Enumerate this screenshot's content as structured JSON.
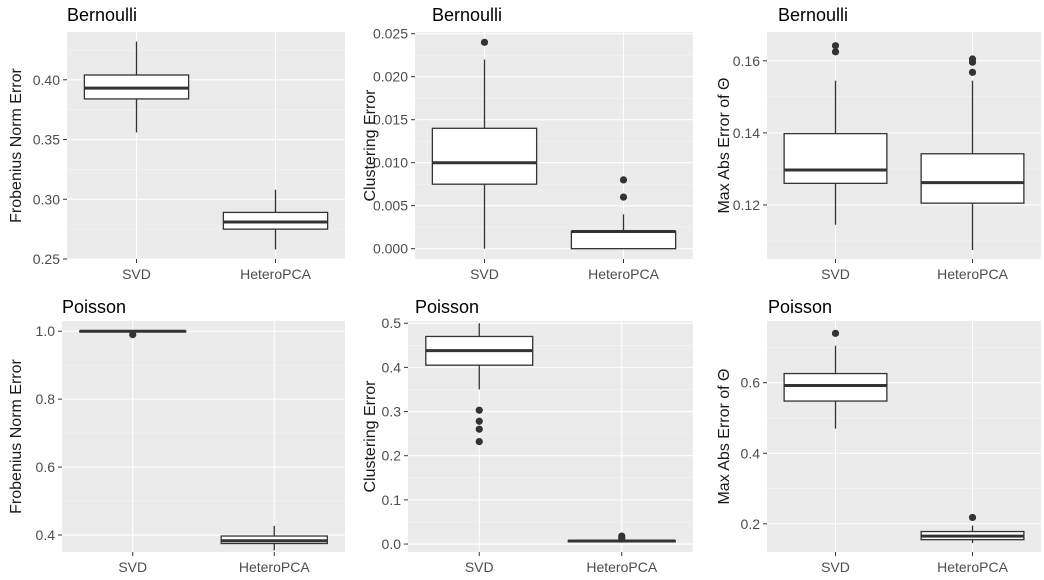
{
  "chart_data": [
    {
      "type": "boxplot",
      "title": "Bernoulli",
      "ylabel": "Frobenius Norm Error",
      "ylim": [
        0.25,
        0.44
      ],
      "yticks": [
        0.25,
        0.3,
        0.35,
        0.4
      ],
      "ytick_labels": [
        "0.25",
        "0.30",
        "0.35",
        "0.40"
      ],
      "categories": [
        "SVD",
        "HeteroPCA"
      ],
      "boxes": [
        {
          "min": 0.356,
          "q1": 0.384,
          "median": 0.393,
          "q3": 0.404,
          "max": 0.432,
          "outliers": []
        },
        {
          "min": 0.258,
          "q1": 0.275,
          "median": 0.281,
          "q3": 0.289,
          "max": 0.308,
          "outliers": []
        }
      ]
    },
    {
      "type": "boxplot",
      "title": "Bernoulli",
      "ylabel": "Clustering Error",
      "ylim": [
        -0.0012,
        0.0252
      ],
      "yticks": [
        0.0,
        0.005,
        0.01,
        0.015,
        0.02,
        0.025
      ],
      "ytick_labels": [
        "0.000",
        "0.005",
        "0.010",
        "0.015",
        "0.020",
        "0.025"
      ],
      "categories": [
        "SVD",
        "HeteroPCA"
      ],
      "boxes": [
        {
          "min": 0.0,
          "q1": 0.0075,
          "median": 0.01,
          "q3": 0.014,
          "max": 0.022,
          "outliers": [
            0.024
          ]
        },
        {
          "min": 0.0,
          "q1": 0.0,
          "median": 0.002,
          "q3": 0.002,
          "max": 0.004,
          "outliers": [
            0.006,
            0.008
          ]
        }
      ]
    },
    {
      "type": "boxplot",
      "title": "Bernoulli",
      "ylabel": "Max Abs Error of Θ",
      "ylim": [
        0.105,
        0.168
      ],
      "yticks": [
        0.12,
        0.14,
        0.16
      ],
      "ytick_labels": [
        "0.12",
        "0.14",
        "0.16"
      ],
      "categories": [
        "SVD",
        "HeteroPCA"
      ],
      "boxes": [
        {
          "min": 0.1145,
          "q1": 0.126,
          "median": 0.1297,
          "q3": 0.1398,
          "max": 0.1545,
          "outliers": [
            0.1625,
            0.1642
          ]
        },
        {
          "min": 0.1075,
          "q1": 0.1205,
          "median": 0.1262,
          "q3": 0.1342,
          "max": 0.1545,
          "outliers": [
            0.1568,
            0.1596,
            0.1605
          ]
        }
      ]
    },
    {
      "type": "boxplot",
      "title": "Poisson",
      "ylabel": "Frobenius Norm Error",
      "ylim": [
        0.35,
        1.03
      ],
      "yticks": [
        0.4,
        0.6,
        0.8,
        1.0
      ],
      "ytick_labels": [
        "0.4",
        "0.6",
        "0.8",
        "1.0"
      ],
      "categories": [
        "SVD",
        "HeteroPCA"
      ],
      "boxes": [
        {
          "min": 0.999,
          "q1": 0.999,
          "median": 1.0,
          "q3": 1.0,
          "max": 1.0,
          "outliers": [
            0.99
          ]
        },
        {
          "min": 0.355,
          "q1": 0.375,
          "median": 0.383,
          "q3": 0.397,
          "max": 0.427,
          "outliers": []
        }
      ]
    },
    {
      "type": "boxplot",
      "title": "Poisson",
      "ylabel": "Clustering Error",
      "ylim": [
        -0.018,
        0.505
      ],
      "yticks": [
        0.0,
        0.1,
        0.2,
        0.3,
        0.4,
        0.5
      ],
      "ytick_labels": [
        "0.0",
        "0.1",
        "0.2",
        "0.3",
        "0.4",
        "0.5"
      ],
      "categories": [
        "SVD",
        "HeteroPCA"
      ],
      "boxes": [
        {
          "min": 0.35,
          "q1": 0.405,
          "median": 0.438,
          "q3": 0.47,
          "max": 0.5,
          "outliers": [
            0.232,
            0.26,
            0.278,
            0.303
          ]
        },
        {
          "min": 0.003,
          "q1": 0.005,
          "median": 0.007,
          "q3": 0.008,
          "max": 0.01,
          "outliers": [
            0.013,
            0.018
          ]
        }
      ]
    },
    {
      "type": "boxplot",
      "title": "Poisson",
      "ylabel": "Max Abs Error of Θ",
      "ylim": [
        0.12,
        0.775
      ],
      "yticks": [
        0.2,
        0.4,
        0.6
      ],
      "ytick_labels": [
        "0.2",
        "0.4",
        "0.6"
      ],
      "categories": [
        "SVD",
        "HeteroPCA"
      ],
      "boxes": [
        {
          "min": 0.47,
          "q1": 0.548,
          "median": 0.592,
          "q3": 0.626,
          "max": 0.705,
          "outliers": [
            0.74
          ]
        },
        {
          "min": 0.145,
          "q1": 0.155,
          "median": 0.165,
          "q3": 0.178,
          "max": 0.195,
          "outliers": [
            0.218
          ]
        }
      ]
    }
  ]
}
